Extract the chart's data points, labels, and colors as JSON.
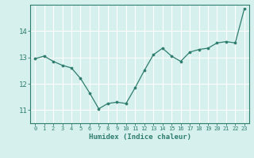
{
  "x": [
    0,
    1,
    2,
    3,
    4,
    5,
    6,
    7,
    8,
    9,
    10,
    11,
    12,
    13,
    14,
    15,
    16,
    17,
    18,
    19,
    20,
    21,
    22,
    23
  ],
  "y": [
    12.95,
    13.05,
    12.85,
    12.7,
    12.6,
    12.2,
    11.65,
    11.05,
    11.25,
    11.3,
    11.25,
    11.85,
    12.5,
    13.1,
    13.35,
    13.05,
    12.85,
    13.2,
    13.3,
    13.35,
    13.55,
    13.6,
    13.55,
    14.85
  ],
  "xlabel": "Humidex (Indice chaleur)",
  "ylim": [
    10.5,
    15.0
  ],
  "xlim": [
    -0.5,
    23.5
  ],
  "yticks": [
    11,
    12,
    13,
    14
  ],
  "xticks": [
    0,
    1,
    2,
    3,
    4,
    5,
    6,
    7,
    8,
    9,
    10,
    11,
    12,
    13,
    14,
    15,
    16,
    17,
    18,
    19,
    20,
    21,
    22,
    23
  ],
  "xtick_labels": [
    "0",
    "1",
    "2",
    "3",
    "4",
    "5",
    "6",
    "7",
    "8",
    "9",
    "10",
    "11",
    "12",
    "13",
    "14",
    "15",
    "16",
    "17",
    "18",
    "19",
    "20",
    "21",
    "22",
    "23"
  ],
  "line_color": "#2e7d6e",
  "marker_color": "#2e7d6e",
  "bg_color": "#d6f0ee",
  "grid_color": "#ffffff",
  "axis_color": "#2e7d6e",
  "tick_color": "#2e7d6e",
  "label_color": "#2e7d6e"
}
